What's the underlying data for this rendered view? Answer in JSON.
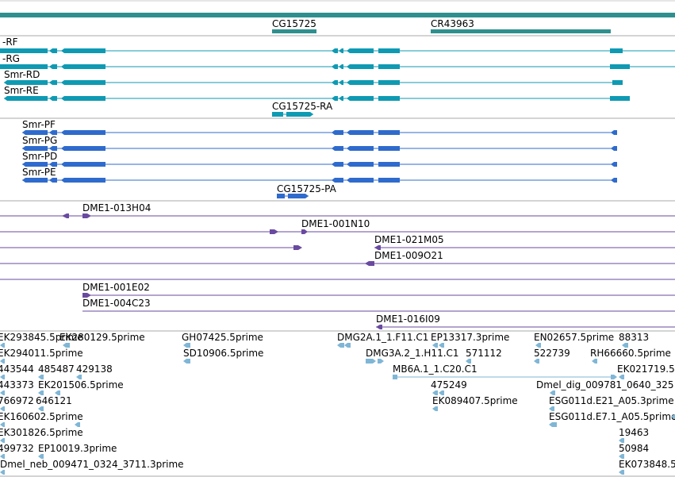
{
  "colors": {
    "gene_bar": "#2f8f8f",
    "transcript_teal": "#0f9ab3",
    "transcript_blue": "#2f6bcd",
    "clone_purple": "#6a4aa0",
    "est_lightblue": "#7fb6d6",
    "separator": "#aaaaaa"
  },
  "genes": [
    {
      "label": "CG15725",
      "color": "teal"
    },
    {
      "label": "CR43963",
      "color": "teal"
    }
  ],
  "transcripts_teal": [
    {
      "label": "-RF"
    },
    {
      "label": "-RG"
    },
    {
      "label": "Smr-RD"
    },
    {
      "label": "Smr-RE"
    },
    {
      "label": "CG15725-RA"
    }
  ],
  "transcripts_blue": [
    {
      "label": "Smr-PF"
    },
    {
      "label": "Smr-PG"
    },
    {
      "label": "Smr-PD"
    },
    {
      "label": "Smr-PE"
    },
    {
      "label": "CG15725-PA"
    }
  ],
  "clones": [
    {
      "label": "DME1-013H04"
    },
    {
      "label": "DME1-001N10"
    },
    {
      "label": "DME1-021M05"
    },
    {
      "label": "DME1-009O21"
    },
    {
      "label": "DME1-001E02"
    },
    {
      "label": "DME1-004C23"
    },
    {
      "label": "DME1-016I09"
    }
  ],
  "ests": [
    {
      "label": "EK293845.5prime"
    },
    {
      "label": "EK280129.5prime"
    },
    {
      "label": "GH07425.5prime"
    },
    {
      "label": "DMG2A.1_1.F11.C1"
    },
    {
      "label": "EP13317.3prime"
    },
    {
      "label": "EN02657.5prime"
    },
    {
      "label": "88313"
    },
    {
      "label": "EK294011.5prime"
    },
    {
      "label": "SD10906.5prime"
    },
    {
      "label": "DMG3A.2_1.H11.C1"
    },
    {
      "label": "571112"
    },
    {
      "label": "522739"
    },
    {
      "label": "RH66660.5prime"
    },
    {
      "label": "443544"
    },
    {
      "label": "485487"
    },
    {
      "label": "429138"
    },
    {
      "label": "MB6A.1_1.C20.C1"
    },
    {
      "label": "EK021719.5"
    },
    {
      "label": "443373"
    },
    {
      "label": "EK201506.5prime"
    },
    {
      "label": "475249"
    },
    {
      "label": "Dmel_dig_009781_0640_325"
    },
    {
      "label": "766972"
    },
    {
      "label": "646121"
    },
    {
      "label": "EK089407.5prime"
    },
    {
      "label": "ESG011d.E21_A05.3prime"
    },
    {
      "label": "EK160602.5prime"
    },
    {
      "label": "ESG011d.E7.1_A05.5prime"
    },
    {
      "label": "EK301826.5prime"
    },
    {
      "label": "19463"
    },
    {
      "label": "499732"
    },
    {
      "label": "EP10019.3prime"
    },
    {
      "label": "50984"
    },
    {
      "label": "Dmel_neb_009471_0324_3711.3prime"
    },
    {
      "label": "EK073848.5"
    }
  ]
}
